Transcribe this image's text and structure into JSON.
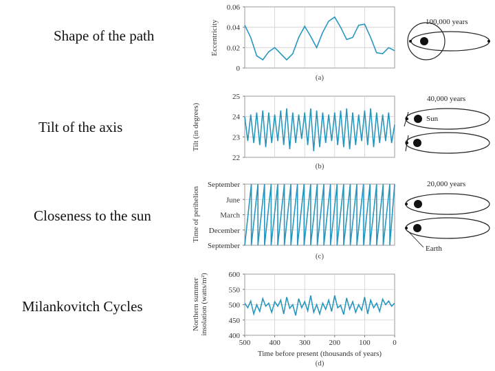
{
  "row_labels": {
    "shape": "Shape of the path",
    "tilt": "Tilt of the axis",
    "closeness": "Closeness to the sun",
    "milankovitch": "Milankovitch Cycles"
  },
  "orbit_labels": {
    "ecc_period": "100,000 years",
    "tilt_period": "40,000 years",
    "prec_period": "20,000 years",
    "sun": "Sun",
    "earth": "Earth"
  },
  "colors": {
    "series": "#2596be",
    "frame": "#9a9a9a",
    "grid": "#cfcfcf"
  },
  "chart_data": [
    {
      "type": "line",
      "caption": "(a)",
      "ylabel": "Eccentricity",
      "xlim": [
        500,
        0
      ],
      "ylim": [
        0,
        0.06
      ],
      "yticks": [
        "0",
        "0.02",
        "0.04",
        "0.06"
      ],
      "x": [
        500,
        480,
        460,
        440,
        420,
        400,
        380,
        360,
        340,
        320,
        300,
        280,
        260,
        240,
        220,
        200,
        180,
        160,
        140,
        120,
        100,
        80,
        60,
        40,
        20,
        0
      ],
      "series": [
        {
          "values": [
            0.042,
            0.03,
            0.012,
            0.008,
            0.016,
            0.02,
            0.014,
            0.008,
            0.014,
            0.03,
            0.041,
            0.031,
            0.02,
            0.035,
            0.046,
            0.05,
            0.04,
            0.028,
            0.03,
            0.042,
            0.043,
            0.03,
            0.015,
            0.014,
            0.02,
            0.017
          ]
        }
      ]
    },
    {
      "type": "line",
      "caption": "(b)",
      "ylabel": "Tilt (in degrees)",
      "xlim": [
        500,
        0
      ],
      "ylim": [
        22,
        25
      ],
      "yticks": [
        "22",
        "23",
        "24",
        "25"
      ],
      "x": [
        500,
        490,
        480,
        470,
        460,
        450,
        440,
        430,
        420,
        410,
        400,
        390,
        380,
        370,
        360,
        350,
        340,
        330,
        320,
        310,
        300,
        290,
        280,
        270,
        260,
        250,
        240,
        230,
        220,
        210,
        200,
        190,
        180,
        170,
        160,
        150,
        140,
        130,
        120,
        110,
        100,
        90,
        80,
        70,
        60,
        50,
        40,
        30,
        20,
        10,
        0
      ],
      "series": [
        {
          "values": [
            24.0,
            22.8,
            24.1,
            22.7,
            24.2,
            22.6,
            24.3,
            22.5,
            24.2,
            22.7,
            24.1,
            22.8,
            24.3,
            22.6,
            24.4,
            22.4,
            24.2,
            22.7,
            24.1,
            22.9,
            24.2,
            22.6,
            24.4,
            22.3,
            24.3,
            22.5,
            24.2,
            22.7,
            24.1,
            22.8,
            24.2,
            22.6,
            24.3,
            22.5,
            24.4,
            22.4,
            24.2,
            22.6,
            24.1,
            22.8,
            24.3,
            22.6,
            24.4,
            22.5,
            24.2,
            22.7,
            24.1,
            22.8,
            24.2,
            22.7,
            23.6
          ]
        }
      ]
    },
    {
      "type": "line",
      "caption": "(c)",
      "ylabel": "Time of perihelion",
      "xlim": [
        500,
        0
      ],
      "ylim": [
        0,
        12
      ],
      "ytick_values": [
        0,
        3,
        6,
        9,
        12
      ],
      "yticks": [
        "September",
        "December",
        "March",
        "June",
        "September"
      ],
      "cycle_length": 22
    },
    {
      "type": "line",
      "caption": "(d)",
      "xlabel": "Time before present (thousands of years)",
      "ylabel": "Northern summer insolation (watts/m²)",
      "ylabel_line1": "Northern summer",
      "ylabel_line2": "insolation (watts/m²)",
      "xlim": [
        500,
        0
      ],
      "ylim": [
        400,
        600
      ],
      "xticks": [
        "500",
        "400",
        "300",
        "200",
        "100",
        "0"
      ],
      "yticks": [
        "400",
        "450",
        "500",
        "550",
        "600"
      ],
      "x": [
        500,
        490,
        480,
        470,
        460,
        450,
        440,
        430,
        420,
        410,
        400,
        390,
        380,
        370,
        360,
        350,
        340,
        330,
        320,
        310,
        300,
        290,
        280,
        270,
        260,
        250,
        240,
        230,
        220,
        210,
        200,
        190,
        180,
        170,
        160,
        150,
        140,
        130,
        120,
        110,
        100,
        90,
        80,
        70,
        60,
        50,
        40,
        30,
        20,
        10,
        0
      ],
      "series": [
        {
          "values": [
            505,
            490,
            512,
            470,
            500,
            478,
            520,
            495,
            505,
            475,
            510,
            495,
            515,
            470,
            525,
            488,
            500,
            465,
            520,
            490,
            510,
            480,
            530,
            475,
            500,
            470,
            505,
            485,
            515,
            478,
            530,
            490,
            498,
            468,
            522,
            485,
            510,
            475,
            500,
            482,
            525,
            470,
            515,
            490,
            505,
            478,
            518,
            500,
            512,
            495,
            505
          ]
        }
      ]
    }
  ]
}
